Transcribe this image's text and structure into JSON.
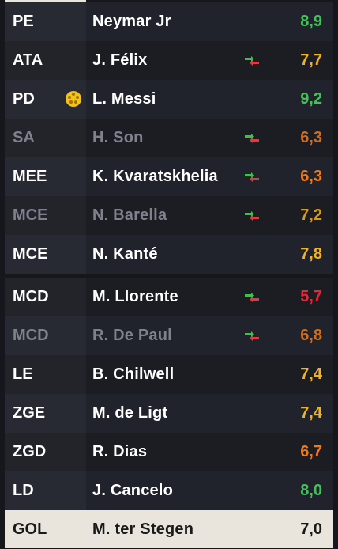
{
  "colors": {
    "rating_green": "#45c05a",
    "rating_yellow": "#f2b21e",
    "rating_orange": "#f07a1a",
    "rating_red": "#e5283c",
    "sub_in": "#3fbf4e",
    "sub_out": "#e53a3a",
    "ball": "#f4c21b"
  },
  "players": [
    {
      "pos": "PE",
      "name": "Neymar Jr",
      "rating": "8,9",
      "rating_color": "#45c05a",
      "sub": false,
      "ball": false,
      "dim": false,
      "highlight": false
    },
    {
      "pos": "ATA",
      "name": "J. Félix",
      "rating": "7,7",
      "rating_color": "#f2b21e",
      "sub": true,
      "ball": false,
      "dim": false,
      "highlight": false
    },
    {
      "pos": "PD",
      "name": "L. Messi",
      "rating": "9,2",
      "rating_color": "#45c05a",
      "sub": false,
      "ball": true,
      "dim": false,
      "highlight": false
    },
    {
      "pos": "SA",
      "name": "H. Son",
      "rating": "6,3",
      "rating_color": "#f07a1a",
      "sub": true,
      "ball": false,
      "dim": true,
      "highlight": false
    },
    {
      "pos": "MEE",
      "name": "K. Kvaratskhelia",
      "rating": "6,3",
      "rating_color": "#f07a1a",
      "sub": true,
      "ball": false,
      "dim": false,
      "highlight": false
    },
    {
      "pos": "MCE",
      "name": "N. Barella",
      "rating": "7,2",
      "rating_color": "#f2b21e",
      "sub": true,
      "ball": false,
      "dim": true,
      "highlight": false
    },
    {
      "pos": "MCE",
      "name": "N. Kanté",
      "rating": "7,8",
      "rating_color": "#f2b21e",
      "sub": false,
      "ball": false,
      "dim": false,
      "highlight": false
    },
    {
      "pos": "MCD",
      "name": "M. Llorente",
      "rating": "5,7",
      "rating_color": "#e5283c",
      "sub": true,
      "ball": false,
      "dim": false,
      "highlight": false
    },
    {
      "pos": "MCD",
      "name": "R. De Paul",
      "rating": "6,8",
      "rating_color": "#f07a1a",
      "sub": true,
      "ball": false,
      "dim": true,
      "highlight": false
    },
    {
      "pos": "LE",
      "name": "B. Chilwell",
      "rating": "7,4",
      "rating_color": "#f2b21e",
      "sub": false,
      "ball": false,
      "dim": false,
      "highlight": false
    },
    {
      "pos": "ZGE",
      "name": "M. de Ligt",
      "rating": "7,4",
      "rating_color": "#f2b21e",
      "sub": false,
      "ball": false,
      "dim": false,
      "highlight": false
    },
    {
      "pos": "ZGD",
      "name": "R. Dias",
      "rating": "6,7",
      "rating_color": "#f07a1a",
      "sub": false,
      "ball": false,
      "dim": false,
      "highlight": false
    },
    {
      "pos": "LD",
      "name": "J. Cancelo",
      "rating": "8,0",
      "rating_color": "#45c05a",
      "sub": false,
      "ball": false,
      "dim": false,
      "highlight": false
    },
    {
      "pos": "GOL",
      "name": "M. ter Stegen",
      "rating": "7,0",
      "rating_color": "#1a1a1a",
      "sub": false,
      "ball": false,
      "dim": false,
      "highlight": true
    }
  ]
}
